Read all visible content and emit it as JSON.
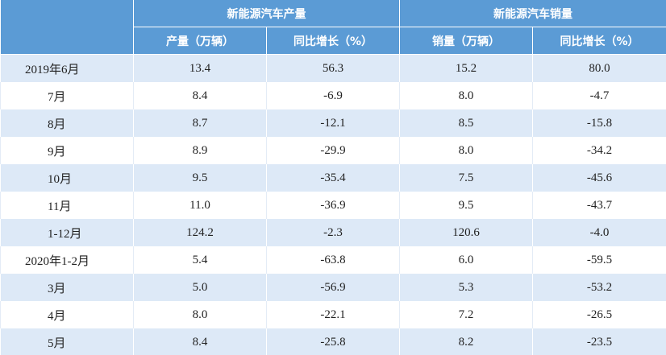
{
  "table": {
    "header": {
      "groups": [
        "新能源汽车产量",
        "新能源汽车销量"
      ],
      "columns": [
        "产量（万辆）",
        "同比增长（%）",
        "销量（万辆）",
        "同比增长（%）"
      ]
    },
    "rows": [
      [
        "2019年6月",
        "13.4",
        "56.3",
        "15.2",
        "80.0"
      ],
      [
        "7月",
        "8.4",
        "-6.9",
        "8.0",
        "-4.7"
      ],
      [
        "8月",
        "8.7",
        "-12.1",
        "8.5",
        "-15.8"
      ],
      [
        "9月",
        "8.9",
        "-29.9",
        "8.0",
        "-34.2"
      ],
      [
        "10月",
        "9.5",
        "-35.4",
        "7.5",
        "-45.6"
      ],
      [
        "11月",
        "11.0",
        "-36.9",
        "9.5",
        "-43.7"
      ],
      [
        "1-12月",
        "124.2",
        "-2.3",
        "120.6",
        "-4.0"
      ],
      [
        "2020年1-2月",
        "5.4",
        "-63.8",
        "6.0",
        "-59.5"
      ],
      [
        "3月",
        "5.0",
        "-56.9",
        "5.3",
        "-53.2"
      ],
      [
        "4月",
        "8.0",
        "-22.1",
        "7.2",
        "-26.5"
      ],
      [
        "5月",
        "8.4",
        "-25.8",
        "8.2",
        "-23.5"
      ]
    ]
  }
}
